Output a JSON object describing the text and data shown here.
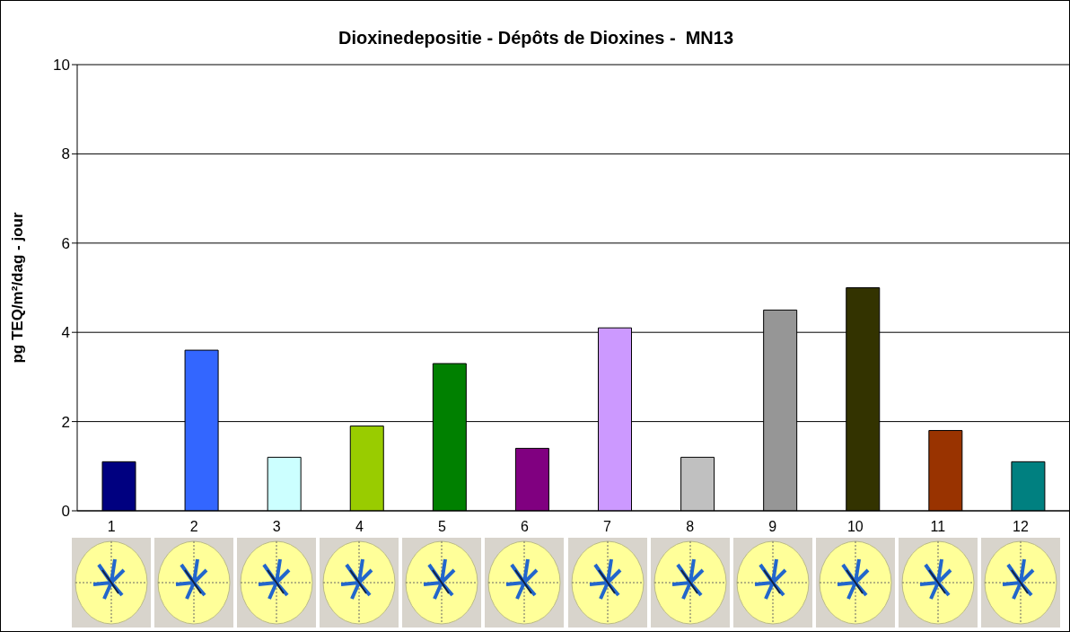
{
  "chart_data": {
    "type": "bar",
    "title": "Dioxinedepositie - Dépôts de Dioxines -  MN13",
    "ylabel": "pg TEQ/m²/dag - jour",
    "categories": [
      "1",
      "2",
      "3",
      "4",
      "5",
      "6",
      "7",
      "8",
      "9",
      "10",
      "11",
      "12"
    ],
    "values": [
      1.1,
      3.6,
      1.2,
      1.9,
      3.3,
      1.4,
      4.1,
      1.2,
      4.5,
      5.0,
      1.8,
      1.1
    ],
    "colors": [
      "#000080",
      "#3366ff",
      "#ccffff",
      "#99cc00",
      "#008000",
      "#800080",
      "#cc99ff",
      "#c0c0c0",
      "#969696",
      "#333300",
      "#993300",
      "#008080"
    ],
    "ylim": [
      0,
      10
    ],
    "yticks": [
      0,
      2,
      4,
      6,
      8,
      10
    ],
    "grid": "y",
    "legend": false
  }
}
